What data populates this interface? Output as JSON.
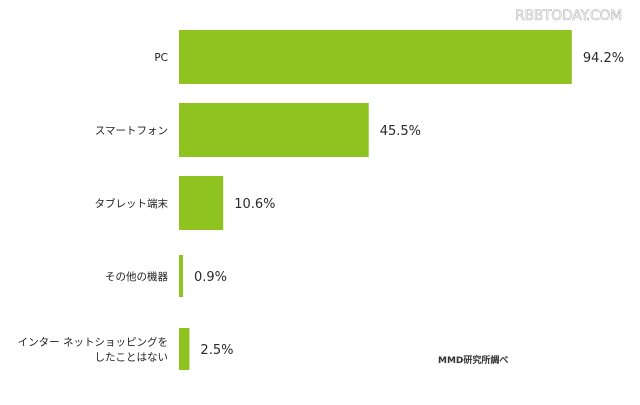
{
  "watermark": "RBBTODAY.COM",
  "source": "MMD研究所調べ",
  "chart_data": {
    "type": "bar",
    "orientation": "horizontal",
    "bar_color": "#8fc31f",
    "categories": [
      [
        "PC"
      ],
      [
        "スマートフォン"
      ],
      [
        "タブレット端末"
      ],
      [
        "その他の機器"
      ],
      [
        "インター ネットショッピングを",
        "したことはない"
      ]
    ],
    "values": [
      94.2,
      45.5,
      10.6,
      0.9,
      2.5
    ],
    "value_labels": [
      "94.2%",
      "45.5%",
      "10.6%",
      "0.9%",
      "2.5%"
    ],
    "xlim": [
      0,
      100
    ],
    "grid": false,
    "legend": "none"
  }
}
